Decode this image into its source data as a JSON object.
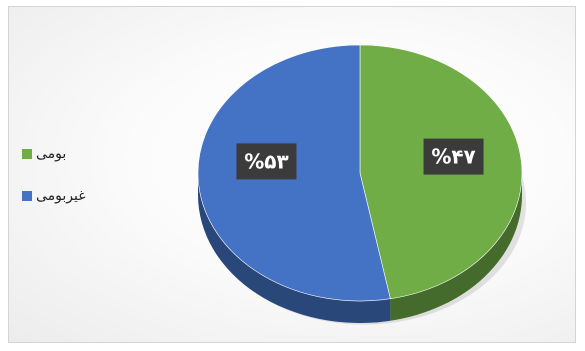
{
  "chart_data": {
    "type": "pie",
    "title": "",
    "categories": [
      "بومی",
      "غیربومی"
    ],
    "values": [
      47,
      53
    ],
    "data_labels": [
      "%۴۷",
      "%۵۳"
    ],
    "colors": [
      "#70AD47",
      "#4472C4"
    ],
    "legend_position": "left",
    "style": "3d"
  }
}
